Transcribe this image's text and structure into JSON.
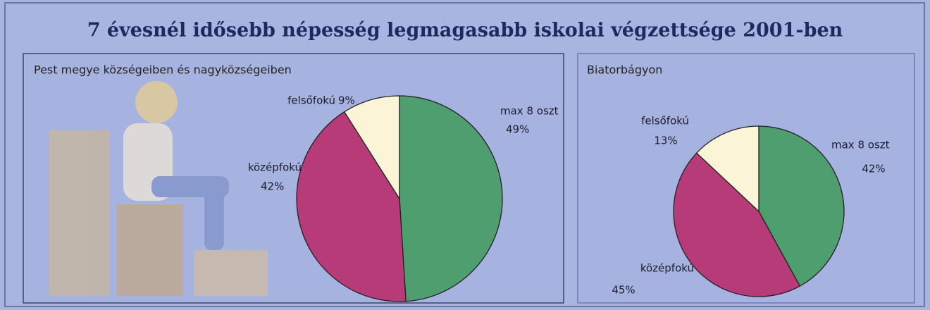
{
  "title": "7 évesnél idősebb népesség legmagasabb iskolai végzettsége 2001-ben",
  "chart_data": [
    {
      "type": "pie",
      "title": "Pest megye községeiben és nagyközségeiben",
      "categories": [
        "max 8 oszt",
        "középfokú",
        "felsőfokú"
      ],
      "values": [
        49,
        42,
        9
      ],
      "value_labels": [
        "49%",
        "42%",
        "9%"
      ],
      "colors": [
        "#4f9e70",
        "#b83b79",
        "#fbf4d6"
      ]
    },
    {
      "type": "pie",
      "title": "Biatorbágyon",
      "categories": [
        "max 8 oszt",
        "középfokú",
        "felsőfokú"
      ],
      "values": [
        42,
        45,
        13
      ],
      "value_labels": [
        "42%",
        "45%",
        "13%"
      ],
      "colors": [
        "#4f9e70",
        "#b83b79",
        "#fbf4d6"
      ]
    }
  ]
}
